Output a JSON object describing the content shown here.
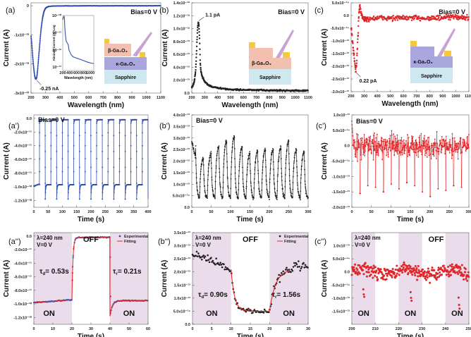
{
  "chart_data": [
    {
      "id": "a",
      "panel_label": "(a)",
      "type": "scatter",
      "xlabel": "Wavelength (nm)",
      "ylabel": "Current (A)",
      "xlim": [
        200,
        1100
      ],
      "ylim": [
        -3e-10,
        1e-11
      ],
      "xticks": [
        "200",
        "300",
        "400",
        "500",
        "600",
        "700",
        "800",
        "900",
        "1000",
        "1100"
      ],
      "yticks": [
        {
          "v": 0,
          "label": "0"
        },
        {
          "v": -1e-10,
          "label": "-1x10⁻¹⁰"
        },
        {
          "v": -2e-10,
          "label": "-2x10⁻¹⁰"
        },
        {
          "v": -3e-10,
          "label": "-3x10⁻¹⁰"
        }
      ],
      "color": "#2f4fb5",
      "series": [
        {
          "name": "photocurrent",
          "x": [
            200,
            205,
            210,
            215,
            220,
            225,
            230,
            235,
            240,
            245,
            250,
            255,
            260,
            265,
            270,
            275,
            280,
            285,
            290,
            295,
            300,
            310,
            320,
            340,
            360,
            400,
            500,
            600,
            700,
            800,
            900,
            1000,
            1100
          ],
          "y": [
            -1.05e-10,
            -1.3e-10,
            -1.65e-10,
            -1.95e-10,
            -2.2e-10,
            -2.4e-10,
            -2.5e-10,
            -2.52e-10,
            -2.45e-10,
            -2.25e-10,
            -1.95e-10,
            -1.65e-10,
            -1.35e-10,
            -1.05e-10,
            -8e-11,
            -6e-11,
            -4.2e-11,
            -3e-11,
            -2e-11,
            -1.4e-11,
            -9e-12,
            -5e-12,
            -3e-12,
            -1.5e-12,
            -1e-12,
            -6e-13,
            -4e-13,
            -3e-13,
            -3e-13,
            -2e-13,
            -2e-13,
            -2e-13,
            -2e-13
          ]
        }
      ],
      "annotations": [
        {
          "text": "Bias=0 V"
        },
        {
          "text": "-0.25 nA",
          "x": 235,
          "y": -2.52e-10
        }
      ],
      "inset": {
        "ylabel": "Absoult Current (A) Log",
        "xlabel": "Wavelength (nm)",
        "xticks": [
          "200",
          "400",
          "600",
          "800",
          "1000"
        ],
        "yticks": [
          "10⁻¹⁰",
          "10⁻¹¹",
          "10⁻¹²",
          "10⁻¹³"
        ],
        "x": [
          200,
          220,
          240,
          250,
          260,
          280,
          300,
          330,
          360,
          380,
          400,
          450,
          500,
          600,
          700,
          800,
          900,
          1000,
          1100
        ],
        "logy": [
          -10.25,
          -10.1,
          -10.05,
          -10.2,
          -10.7,
          -11.2,
          -11.5,
          -11.6,
          -11.7,
          -12.0,
          -12.1,
          -12.3,
          -12.4,
          -12.48,
          -12.55,
          -12.62,
          -12.7,
          -12.76,
          -12.8
        ]
      },
      "device": {
        "layers": [
          "β-Ga₂O₃",
          "κ-Ga₂O₃",
          "Sapphire"
        ]
      }
    },
    {
      "id": "b",
      "panel_label": "(b)",
      "type": "scatter",
      "xlabel": "Wavelength (nm)",
      "ylabel": "Current (A)",
      "xlim": [
        200,
        1100
      ],
      "ylim": [
        0,
        1.4e-12
      ],
      "xticks": [
        "200",
        "300",
        "400",
        "500",
        "600",
        "700",
        "800",
        "900",
        "1000",
        "1100"
      ],
      "yticks": [
        {
          "v": 0,
          "label": "0.0"
        },
        {
          "v": 2e-13,
          "label": "2.0x10⁻¹³"
        },
        {
          "v": 4e-13,
          "label": "4.0x10⁻¹³"
        },
        {
          "v": 6e-13,
          "label": "6.0x10⁻¹³"
        },
        {
          "v": 8e-13,
          "label": "8.0x10⁻¹³"
        },
        {
          "v": 1e-12,
          "label": "1.0x10⁻¹²"
        },
        {
          "v": 1.2e-12,
          "label": "1.2x10⁻¹²"
        },
        {
          "v": 1.4e-12,
          "label": "1.4x10⁻¹²"
        }
      ],
      "color": "#222222",
      "series": [
        {
          "name": "photocurrent",
          "x": [
            200,
            210,
            220,
            230,
            235,
            240,
            245,
            250,
            255,
            260,
            265,
            270,
            275,
            280,
            290,
            300,
            320,
            350,
            400,
            450,
            500,
            600,
            700,
            800,
            900,
            1000,
            1100
          ],
          "y": [
            9e-14,
            1.2e-13,
            1.8e-13,
            3.5e-13,
            5.5e-13,
            8e-13,
            1e-12,
            1.1e-12,
            1.05e-12,
            8.5e-13,
            5e-13,
            3.5e-13,
            3e-13,
            2.6e-13,
            2.2e-13,
            1.8e-13,
            1.4e-13,
            1e-13,
            8e-14,
            6.5e-14,
            5.5e-14,
            5e-14,
            4.5e-14,
            4.2e-14,
            4e-14,
            3.8e-14,
            3.6e-14
          ]
        }
      ],
      "annotations": [
        {
          "text": "Bias=0 V"
        },
        {
          "text": "1.1 pA",
          "x": 250,
          "y": 1.1e-12
        }
      ],
      "device": {
        "layers": [
          "β-Ga₂O₃",
          "Sapphire"
        ]
      }
    },
    {
      "id": "c",
      "panel_label": "(c)",
      "type": "scatter",
      "xlabel": "Wavelength (nm)",
      "ylabel": "Current (A)",
      "xlim": [
        200,
        1100
      ],
      "ylim": [
        -3e-13,
        5e-14
      ],
      "xticks": [
        "200",
        "300",
        "400",
        "500",
        "600",
        "700",
        "800",
        "900",
        "1000",
        "1100"
      ],
      "yticks": [
        {
          "v": 5e-14,
          "label": "5.0x10⁻¹⁴"
        },
        {
          "v": 0,
          "label": "0.0"
        },
        {
          "v": -5e-14,
          "label": "-5.0x10⁻¹⁴"
        },
        {
          "v": -1e-13,
          "label": "-1.0x10⁻¹³"
        },
        {
          "v": -1.5e-13,
          "label": "-1.5x10⁻¹³"
        },
        {
          "v": -2e-13,
          "label": "-2.0x10⁻¹³"
        },
        {
          "v": -2.5e-13,
          "label": "-2.5x10⁻¹³"
        },
        {
          "v": -3e-13,
          "label": "-3.0x10⁻¹³"
        }
      ],
      "color": "#e8262a",
      "series": [
        {
          "name": "photocurrent",
          "x": [
            200,
            210,
            220,
            230,
            235,
            240,
            245,
            250,
            255,
            260,
            265,
            270,
            280,
            300,
            400,
            500,
            600,
            700,
            800,
            900,
            1000,
            1100
          ],
          "y": [
            -5e-14,
            -1e-13,
            -1.5e-13,
            -1.9e-13,
            -2.2e-13,
            -2e-13,
            -1.6e-13,
            -1e-13,
            -5e-14,
            1e-14,
            4e-14,
            3e-14,
            0.0,
            -1.5e-14,
            -1e-14,
            -1e-14,
            -1e-14,
            -1e-14,
            -1e-14,
            -1e-14,
            -5e-15,
            -1e-14
          ]
        }
      ],
      "annotations": [
        {
          "text": "Bias=0 V"
        },
        {
          "text": "0.22 pA",
          "x": 235,
          "y": -2.2e-13
        }
      ],
      "device": {
        "layers": [
          "κ-Ga₂O₃",
          "Sapphire"
        ]
      }
    },
    {
      "id": "a1",
      "panel_label": "(a')",
      "type": "scatter",
      "xlabel": "Time (s)",
      "ylabel": "Current (A)",
      "xlim": [
        0,
        400
      ],
      "ylim": [
        -1.3e-10,
        5e-12
      ],
      "xticks": [
        "0",
        "50",
        "100",
        "150",
        "200",
        "250",
        "300",
        "350",
        "400"
      ],
      "yticks": [
        {
          "v": 0,
          "label": "0.0"
        },
        {
          "v": -2e-11,
          "label": "-2.0x10⁻¹¹"
        },
        {
          "v": -4e-11,
          "label": "-4.0x10⁻¹¹"
        },
        {
          "v": -6e-11,
          "label": "-6.0x10⁻¹¹"
        },
        {
          "v": -8e-11,
          "label": "-8.0x10⁻¹¹"
        },
        {
          "v": -1e-10,
          "label": "-1.0x10⁻¹⁰"
        },
        {
          "v": -1.2e-10,
          "label": "-1.2x10⁻¹⁰"
        }
      ],
      "color": "#2f4fb5",
      "waveform": {
        "period": 40,
        "on_level": -9.7e-11,
        "off_level": -2e-12,
        "undershoot": -1.18e-10,
        "cycles": 10
      },
      "annotations": [
        {
          "text": "Bias=0 V"
        }
      ]
    },
    {
      "id": "b1",
      "panel_label": "(b')",
      "type": "scatter",
      "xlabel": "Time (s)",
      "ylabel": "Current (A)",
      "xlim": [
        0,
        300
      ],
      "ylim": [
        0,
        4e-13
      ],
      "xticks": [
        "0",
        "50",
        "100",
        "150",
        "200",
        "250",
        "300"
      ],
      "yticks": [
        {
          "v": 0,
          "label": "0.0"
        },
        {
          "v": 5e-14,
          "label": "5.0x10⁻¹⁴"
        },
        {
          "v": 1e-13,
          "label": "1.0x10⁻¹³"
        },
        {
          "v": 1.5e-13,
          "label": "1.5x10⁻¹³"
        },
        {
          "v": 2e-13,
          "label": "2.0x10⁻¹³"
        },
        {
          "v": 2.5e-13,
          "label": "2.5x10⁻¹³"
        },
        {
          "v": 3e-13,
          "label": "3.0x10⁻¹³"
        },
        {
          "v": 3.5e-13,
          "label": "3.5x10⁻¹³"
        },
        {
          "v": 4e-13,
          "label": "4.0x10⁻¹³"
        }
      ],
      "color": "#222222",
      "waveform": {
        "period": 20,
        "peaks": [
          2.7e-13,
          2.2e-13,
          2.4e-13,
          2.7e-13,
          3e-13,
          3.2e-13,
          2.7e-13,
          2.4e-13,
          2.5e-13,
          2.6e-13,
          2.6e-13,
          2.7e-13,
          3e-13,
          2.6e-13,
          2.5e-13
        ],
        "trough": 4e-14,
        "cycles": 15
      },
      "annotations": [
        {
          "text": "Bias=0 V"
        }
      ]
    },
    {
      "id": "c1",
      "panel_label": "(c')",
      "type": "scatter",
      "xlabel": "Time (s)",
      "ylabel": "Current (A)",
      "xlim": [
        0,
        300
      ],
      "ylim": [
        -2e-13,
        1e-13
      ],
      "xticks": [
        "0",
        "50",
        "100",
        "150",
        "200",
        "250",
        "300"
      ],
      "yticks": [
        {
          "v": 1e-13,
          "label": "1.0x10⁻¹³"
        },
        {
          "v": 5e-14,
          "label": "5.0x10⁻¹⁴"
        },
        {
          "v": 0,
          "label": "0.0"
        },
        {
          "v": -5e-14,
          "label": "-5.0x10⁻¹⁴"
        },
        {
          "v": -1e-13,
          "label": "-1.0x10⁻¹³"
        },
        {
          "v": -1.5e-13,
          "label": "-1.5x10⁻¹³"
        },
        {
          "v": -2e-13,
          "label": "-2.0x10⁻¹³"
        }
      ],
      "color": "#e8262a",
      "waveform": {
        "period": 20,
        "spike_min": [
          -1.8e-13,
          -1.55e-13,
          -1.3e-13,
          -1.35e-13,
          -1.5e-13,
          -1.25e-13,
          -1.4e-13,
          -1.2e-13,
          -1.3e-13,
          -1.5e-13,
          -1.65e-13,
          -1.4e-13,
          -1.45e-13,
          -1.3e-13,
          -1.35e-13
        ],
        "noise": 6e-14,
        "cycles": 15
      },
      "annotations": [
        {
          "text": "Bias=0 V"
        }
      ]
    },
    {
      "id": "a2",
      "panel_label": "(a'')",
      "type": "scatter",
      "xlabel": "Time (s)",
      "ylabel": "Current (A)",
      "xlim": [
        0,
        60
      ],
      "ylim": [
        -1.3e-10,
        5e-12
      ],
      "xticks": [
        "0",
        "10",
        "20",
        "30",
        "40",
        "50",
        "60"
      ],
      "yticks": [
        {
          "v": 0,
          "label": "0.0"
        },
        {
          "v": -2e-11,
          "label": "-2.0x10⁻¹¹"
        },
        {
          "v": -4e-11,
          "label": "-4.0x10⁻¹¹"
        },
        {
          "v": -6e-11,
          "label": "-6.0x10⁻¹¹"
        },
        {
          "v": -8e-11,
          "label": "-8.0x10⁻¹¹"
        },
        {
          "v": -1e-10,
          "label": "-1.0x10⁻¹⁰"
        },
        {
          "v": -1.2e-10,
          "label": "-1.2x10⁻¹⁰"
        }
      ],
      "color": "#2f4fb5",
      "fit_color": "#e8262a",
      "shade_color": "#eadcea",
      "on_regions": [
        [
          0,
          20
        ],
        [
          40,
          60
        ]
      ],
      "region_labels": [
        {
          "text": "ON",
          "x": 8
        },
        {
          "text": "OFF",
          "x": 30
        },
        {
          "text": "ON",
          "x": 50
        }
      ],
      "conditions": [
        "λ=240 nm",
        "V=0 V"
      ],
      "tau_labels": [
        {
          "text": "τd= 0.53s",
          "sym": "τ",
          "sub": "d",
          "val": "= 0.53s"
        },
        {
          "text": "τr= 0.21s",
          "sym": "τ",
          "sub": "r",
          "val": "= 0.21s"
        }
      ],
      "legend": {
        "position": "top-right",
        "entries": [
          "Experimental",
          "Fitting"
        ]
      },
      "tau_decay_s": 0.53,
      "tau_rise_s": 0.21,
      "on_level": -9.8e-11,
      "off_level": -2e-12,
      "undershoot": -1.18e-10
    },
    {
      "id": "b2",
      "panel_label": "(b'')",
      "type": "scatter",
      "xlabel": "Time (s)",
      "ylabel": "Current (A)",
      "xlim": [
        0,
        30
      ],
      "ylim": [
        0,
        3.5e-13
      ],
      "xticks": [
        "0",
        "5",
        "10",
        "15",
        "20",
        "25",
        "30"
      ],
      "yticks": [
        {
          "v": 0,
          "label": "0.0"
        },
        {
          "v": 5e-14,
          "label": "5.0x10⁻¹⁴"
        },
        {
          "v": 1e-13,
          "label": "1.0x10⁻¹³"
        },
        {
          "v": 1.5e-13,
          "label": "1.5x10⁻¹³"
        },
        {
          "v": 2e-13,
          "label": "2.0x10⁻¹³"
        },
        {
          "v": 2.5e-13,
          "label": "2.5x10⁻¹³"
        },
        {
          "v": 3e-13,
          "label": "3.0x10⁻¹³"
        },
        {
          "v": 3.5e-13,
          "label": "3.5x10⁻¹³"
        }
      ],
      "color": "#222222",
      "fit_color": "#e8262a",
      "shade_color": "#eadcea",
      "on_regions": [
        [
          0,
          10
        ],
        [
          20,
          30
        ]
      ],
      "region_labels": [
        {
          "text": "ON",
          "x": 5
        },
        {
          "text": "OFF",
          "x": 15
        },
        {
          "text": "ON",
          "x": 25
        }
      ],
      "conditions": [
        "λ=240 nm",
        "V=0 V"
      ],
      "tau_labels": [
        {
          "text": "τd= 0.90s",
          "sym": "τ",
          "sub": "d",
          "val": "= 0.90s"
        },
        {
          "text": "τr= 1.56s",
          "sym": "τ",
          "sub": "r",
          "val": "= 1.56s"
        }
      ],
      "legend": {
        "position": "top-right",
        "entries": [
          "Experimental",
          "Fitting"
        ]
      },
      "tau_decay_s": 0.9,
      "tau_rise_s": 1.56,
      "on_level": 2.1e-13,
      "off_level": 5e-14
    },
    {
      "id": "c2",
      "panel_label": "(c'')",
      "type": "scatter",
      "xlabel": "Time (s)",
      "ylabel": "Current (A)",
      "xlim": [
        200,
        250
      ],
      "ylim": [
        -2e-13,
        1.5e-13
      ],
      "xticks": [
        "200",
        "210",
        "220",
        "230",
        "240",
        "250"
      ],
      "yticks": [
        {
          "v": 1e-13,
          "label": "1.0x10⁻¹³"
        },
        {
          "v": 5e-14,
          "label": "5.0x10⁻¹⁴"
        },
        {
          "v": 0,
          "label": "0.0"
        },
        {
          "v": -5e-14,
          "label": "-5.0x10⁻¹⁴"
        },
        {
          "v": -1e-13,
          "label": "-1.0x10⁻¹³"
        },
        {
          "v": -1.5e-13,
          "label": "-1.5x10⁻¹³"
        }
      ],
      "color": "#e8262a",
      "shade_color": "#eadcea",
      "on_regions": [
        [
          200,
          210
        ],
        [
          220,
          230
        ],
        [
          240,
          250
        ]
      ],
      "region_labels": [
        {
          "text": "ON",
          "x": 205
        },
        {
          "text": "ON",
          "x": 225
        },
        {
          "text": "OFF",
          "x": 236
        },
        {
          "text": "ON",
          "x": 245
        }
      ],
      "conditions": [
        "λ=240 nm",
        "V=0 V"
      ],
      "spikes": [
        {
          "x": 205.3,
          "y": -9.5e-14
        },
        {
          "x": 225.5,
          "y": -1.1e-13
        },
        {
          "x": 246,
          "y": -1.4e-13
        }
      ]
    }
  ]
}
